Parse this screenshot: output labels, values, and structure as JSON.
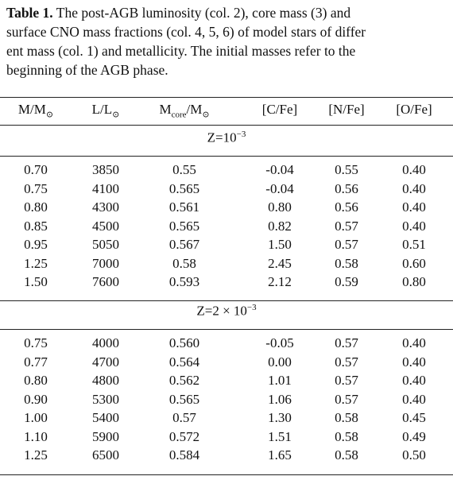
{
  "caption": {
    "label": "Table 1.",
    "lines": [
      "The post-AGB luminosity (col. 2), core mass (3) and",
      "surface CNO mass fractions (col. 4, 5, 6) of model stars of differ",
      "ent mass (col. 1) and metallicity. The initial masses refer to the",
      "beginning of the AGB phase."
    ]
  },
  "table": {
    "header": [
      [
        {
          "t": "M/M"
        },
        {
          "sub": "⊙"
        }
      ],
      [
        {
          "t": "L/L"
        },
        {
          "sub": "⊙"
        }
      ],
      [
        {
          "t": "M"
        },
        {
          "sub": "core"
        },
        {
          "t": "/M"
        },
        {
          "sub": "⊙"
        }
      ],
      [
        {
          "t": "[C/Fe]"
        }
      ],
      [
        {
          "t": "[N/Fe]"
        }
      ],
      [
        {
          "t": "[O/Fe]"
        }
      ]
    ],
    "sections": [
      {
        "title": {
          "t": "Z=10",
          "sup": "−3"
        },
        "rows": [
          [
            "0.70",
            "3850",
            "0.55",
            "-0.04",
            "0.55",
            "0.40"
          ],
          [
            "0.75",
            "4100",
            "0.565",
            "-0.04",
            "0.56",
            "0.40"
          ],
          [
            "0.80",
            "4300",
            "0.561",
            "0.80",
            "0.56",
            "0.40"
          ],
          [
            "0.85",
            "4500",
            "0.565",
            "0.82",
            "0.57",
            "0.40"
          ],
          [
            "0.95",
            "5050",
            "0.567",
            "1.50",
            "0.57",
            "0.51"
          ],
          [
            "1.25",
            "7000",
            "0.58",
            "2.45",
            "0.58",
            "0.60"
          ],
          [
            "1.50",
            "7600",
            "0.593",
            "2.12",
            "0.59",
            "0.80"
          ]
        ]
      },
      {
        "title": {
          "t": "Z=2 × 10",
          "sup": "−3"
        },
        "rows": [
          [
            "0.75",
            "4000",
            "0.560",
            "-0.05",
            "0.57",
            "0.40"
          ],
          [
            "0.77",
            "4700",
            "0.564",
            "0.00",
            "0.57",
            "0.40"
          ],
          [
            "0.80",
            "4800",
            "0.562",
            "1.01",
            "0.57",
            "0.40"
          ],
          [
            "0.90",
            "5300",
            "0.565",
            "1.06",
            "0.57",
            "0.40"
          ],
          [
            "1.00",
            "5400",
            "0.57",
            "1.30",
            "0.58",
            "0.45"
          ],
          [
            "1.10",
            "5900",
            "0.572",
            "1.51",
            "0.58",
            "0.49"
          ],
          [
            "1.25",
            "6500",
            "0.584",
            "1.65",
            "0.58",
            "0.50"
          ]
        ]
      }
    ]
  }
}
